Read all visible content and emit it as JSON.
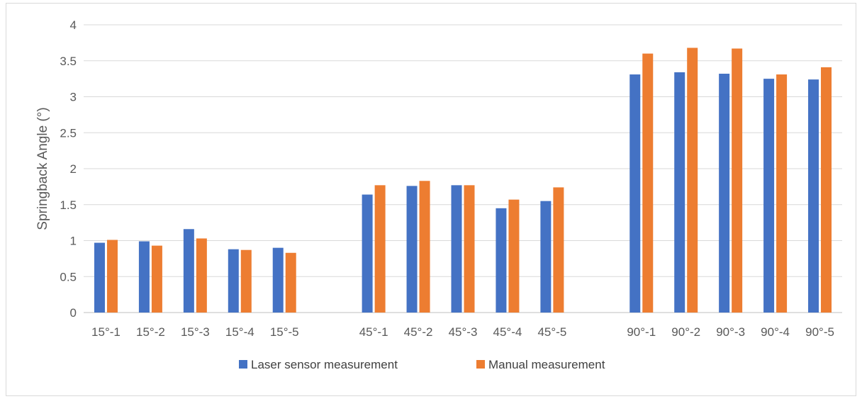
{
  "chart_data": {
    "type": "bar",
    "title": "",
    "xlabel": "",
    "ylabel": "Springback Angle (°)",
    "ylim": [
      0,
      4
    ],
    "yticks": [
      "0",
      "0.5",
      "1",
      "1.5",
      "2",
      "2.5",
      "3",
      "3.5",
      "4"
    ],
    "grid": true,
    "legend_position": "bottom",
    "categories": [
      "15°-1",
      "15°-2",
      "15°-3",
      "15°-4",
      "15°-5",
      "",
      "45°-1",
      "45°-2",
      "45°-3",
      "45°-4",
      "45°-5",
      "",
      "90°-1",
      "90°-2",
      "90°-3",
      "90°-4",
      "90°-5"
    ],
    "series": [
      {
        "name": "Laser sensor measurement",
        "color": "#4472c4",
        "values": [
          0.97,
          0.99,
          1.16,
          0.88,
          0.9,
          null,
          1.64,
          1.76,
          1.77,
          1.45,
          1.55,
          null,
          3.31,
          3.34,
          3.32,
          3.25,
          3.24
        ]
      },
      {
        "name": "Manual measurement",
        "color": "#ed7d31",
        "values": [
          1.01,
          0.93,
          1.03,
          0.87,
          0.83,
          null,
          1.77,
          1.83,
          1.77,
          1.57,
          1.74,
          null,
          3.6,
          3.68,
          3.67,
          3.31,
          3.41
        ]
      }
    ]
  }
}
